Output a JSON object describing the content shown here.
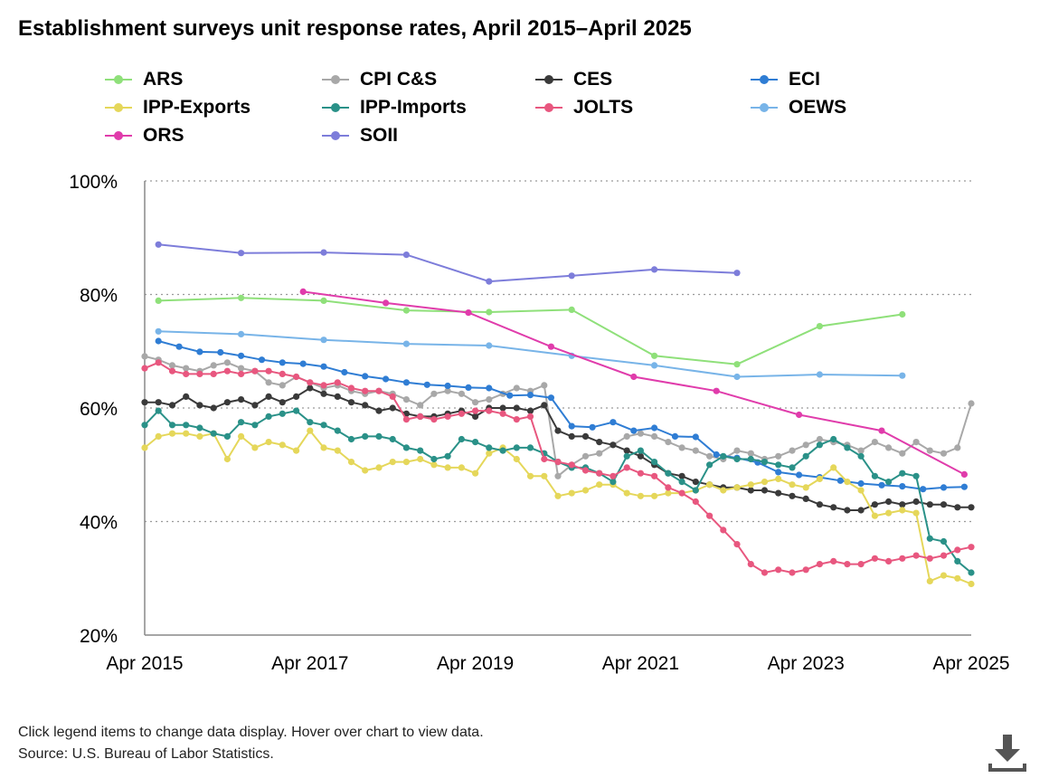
{
  "title": "Establishment surveys unit response rates, April 2015–April 2025",
  "footnote": {
    "line1": "Click legend items to change data display. Hover over chart to view data.",
    "line2": "Source: U.S. Bureau of Labor Statistics."
  },
  "download_icon": "download-icon",
  "chart_data": {
    "type": "line",
    "title": "Establishment surveys unit response rates, April 2015–April 2025",
    "xlabel": "",
    "ylabel": "",
    "x_range": [
      "2015-04",
      "2025-04"
    ],
    "xticks": [
      "Apr 2015",
      "Apr 2017",
      "Apr 2019",
      "Apr 2021",
      "Apr 2023",
      "Apr 2025"
    ],
    "yticks": [
      "20%",
      "40%",
      "60%",
      "80%",
      "100%"
    ],
    "ylim": [
      20,
      100
    ],
    "grid": "horizontal dotted",
    "legend_position": "top",
    "series": [
      {
        "name": "ARS",
        "color": "#8fe07a",
        "x": [
          "2015-06",
          "2016-06",
          "2017-06",
          "2018-06",
          "2019-06",
          "2020-06",
          "2021-06",
          "2022-06",
          "2023-06",
          "2024-06"
        ],
        "y": [
          78.9,
          79.4,
          78.9,
          77.2,
          76.9,
          77.3,
          69.2,
          67.7,
          74.4,
          76.5
        ]
      },
      {
        "name": "CPI C&S",
        "color": "#a8a8a8",
        "x": [
          "2015-04",
          "2015-06",
          "2015-08",
          "2015-10",
          "2015-12",
          "2016-02",
          "2016-04",
          "2016-06",
          "2016-08",
          "2016-10",
          "2016-12",
          "2017-02",
          "2017-04",
          "2017-06",
          "2017-08",
          "2017-10",
          "2017-12",
          "2018-02",
          "2018-04",
          "2018-06",
          "2018-08",
          "2018-10",
          "2018-12",
          "2019-02",
          "2019-04",
          "2019-06",
          "2019-08",
          "2019-10",
          "2019-12",
          "2020-02",
          "2020-04",
          "2020-06",
          "2020-08",
          "2020-10",
          "2020-12",
          "2021-02",
          "2021-04",
          "2021-06",
          "2021-08",
          "2021-10",
          "2021-12",
          "2022-02",
          "2022-04",
          "2022-06",
          "2022-08",
          "2022-10",
          "2022-12",
          "2023-02",
          "2023-04",
          "2023-06",
          "2023-08",
          "2023-10",
          "2023-12",
          "2024-02",
          "2024-04",
          "2024-06",
          "2024-08",
          "2024-10",
          "2024-12",
          "2025-02",
          "2025-04"
        ],
        "y": [
          69.1,
          68.5,
          67.5,
          67.0,
          66.5,
          67.5,
          68.0,
          67.0,
          66.5,
          64.5,
          64.0,
          65.5,
          64.5,
          63.5,
          64.0,
          63.0,
          62.5,
          63.0,
          62.5,
          61.5,
          60.5,
          62.5,
          63.0,
          62.5,
          61.0,
          61.5,
          62.5,
          63.5,
          63.0,
          64.0,
          48.0,
          50.0,
          51.5,
          52.0,
          53.5,
          55.0,
          55.5,
          55.0,
          54.0,
          53.0,
          52.5,
          51.5,
          51.0,
          52.5,
          52.0,
          51.0,
          51.5,
          52.5,
          53.5,
          54.5,
          54.0,
          53.5,
          52.5,
          54.0,
          53.0,
          52.0,
          54.0,
          52.5,
          52.0,
          53.0,
          60.8
        ]
      },
      {
        "name": "CES",
        "color": "#3a3a3a",
        "x": [
          "2015-04",
          "2015-06",
          "2015-08",
          "2015-10",
          "2015-12",
          "2016-02",
          "2016-04",
          "2016-06",
          "2016-08",
          "2016-10",
          "2016-12",
          "2017-02",
          "2017-04",
          "2017-06",
          "2017-08",
          "2017-10",
          "2017-12",
          "2018-02",
          "2018-04",
          "2018-06",
          "2018-08",
          "2018-10",
          "2018-12",
          "2019-02",
          "2019-04",
          "2019-06",
          "2019-08",
          "2019-10",
          "2019-12",
          "2020-02",
          "2020-04",
          "2020-06",
          "2020-08",
          "2020-10",
          "2020-12",
          "2021-02",
          "2021-04",
          "2021-06",
          "2021-08",
          "2021-10",
          "2021-12",
          "2022-02",
          "2022-04",
          "2022-06",
          "2022-08",
          "2022-10",
          "2022-12",
          "2023-02",
          "2023-04",
          "2023-06",
          "2023-08",
          "2023-10",
          "2023-12",
          "2024-02",
          "2024-04",
          "2024-06",
          "2024-08",
          "2024-10",
          "2024-12",
          "2025-02",
          "2025-04"
        ],
        "y": [
          61.0,
          61.0,
          60.5,
          62.0,
          60.5,
          60.0,
          61.0,
          61.5,
          60.5,
          62.0,
          61.0,
          62.0,
          63.5,
          62.5,
          62.0,
          61.0,
          60.5,
          59.5,
          60.0,
          59.0,
          58.5,
          58.5,
          59.0,
          59.5,
          58.5,
          60.0,
          60.0,
          60.0,
          59.5,
          60.5,
          56.0,
          55.0,
          55.0,
          54.0,
          53.5,
          52.5,
          51.5,
          50.0,
          48.5,
          48.0,
          47.0,
          46.5,
          46.0,
          46.0,
          45.5,
          45.5,
          45.0,
          44.5,
          44.0,
          43.0,
          42.5,
          42.0,
          42.0,
          43.0,
          43.5,
          43.0,
          43.5,
          43.0,
          43.0,
          42.5,
          42.5
        ]
      },
      {
        "name": "ECI",
        "color": "#2f7dd4",
        "x": [
          "2015-06",
          "2015-09",
          "2015-12",
          "2016-03",
          "2016-06",
          "2016-09",
          "2016-12",
          "2017-03",
          "2017-06",
          "2017-09",
          "2017-12",
          "2018-03",
          "2018-06",
          "2018-09",
          "2018-12",
          "2019-03",
          "2019-06",
          "2019-09",
          "2019-12",
          "2020-03",
          "2020-06",
          "2020-09",
          "2020-12",
          "2021-03",
          "2021-06",
          "2021-09",
          "2021-12",
          "2022-03",
          "2022-06",
          "2022-09",
          "2022-12",
          "2023-03",
          "2023-06",
          "2023-09",
          "2023-12",
          "2024-03",
          "2024-06",
          "2024-09",
          "2024-12",
          "2025-03"
        ],
        "y": [
          71.8,
          70.8,
          69.9,
          69.8,
          69.2,
          68.5,
          68.0,
          67.8,
          67.3,
          66.3,
          65.6,
          65.1,
          64.5,
          64.1,
          63.9,
          63.6,
          63.5,
          62.2,
          62.3,
          61.8,
          56.8,
          56.6,
          57.5,
          56.0,
          56.5,
          55.0,
          54.9,
          51.8,
          51.2,
          50.4,
          48.7,
          48.2,
          47.8,
          47.2,
          46.7,
          46.4,
          46.2,
          45.7,
          46.0,
          46.1
        ]
      },
      {
        "name": "IPP-Exports",
        "color": "#e5d75a",
        "x": [
          "2015-04",
          "2015-06",
          "2015-08",
          "2015-10",
          "2015-12",
          "2016-02",
          "2016-04",
          "2016-06",
          "2016-08",
          "2016-10",
          "2016-12",
          "2017-02",
          "2017-04",
          "2017-06",
          "2017-08",
          "2017-10",
          "2017-12",
          "2018-02",
          "2018-04",
          "2018-06",
          "2018-08",
          "2018-10",
          "2018-12",
          "2019-02",
          "2019-04",
          "2019-06",
          "2019-08",
          "2019-10",
          "2019-12",
          "2020-02",
          "2020-04",
          "2020-06",
          "2020-08",
          "2020-10",
          "2020-12",
          "2021-02",
          "2021-04",
          "2021-06",
          "2021-08",
          "2021-10",
          "2021-12",
          "2022-02",
          "2022-04",
          "2022-06",
          "2022-08",
          "2022-10",
          "2022-12",
          "2023-02",
          "2023-04",
          "2023-06",
          "2023-08",
          "2023-10",
          "2023-12",
          "2024-02",
          "2024-04",
          "2024-06",
          "2024-08",
          "2024-10",
          "2024-12",
          "2025-02",
          "2025-04"
        ],
        "y": [
          53.0,
          55.0,
          55.5,
          55.5,
          55.0,
          55.5,
          51.0,
          55.0,
          53.0,
          54.0,
          53.5,
          52.5,
          56.0,
          53.0,
          52.5,
          50.5,
          49.0,
          49.5,
          50.5,
          50.5,
          51.0,
          50.0,
          49.5,
          49.5,
          48.5,
          52.0,
          53.0,
          51.0,
          48.0,
          48.0,
          44.5,
          45.0,
          45.5,
          46.5,
          46.5,
          45.0,
          44.5,
          44.5,
          45.0,
          45.0,
          45.5,
          46.5,
          45.5,
          46.0,
          46.5,
          47.0,
          47.5,
          46.5,
          46.0,
          47.5,
          49.5,
          47.0,
          45.5,
          41.0,
          41.5,
          42.0,
          41.5,
          29.5,
          30.5,
          30.0,
          29.0
        ]
      },
      {
        "name": "IPP-Imports",
        "color": "#2a9188",
        "x": [
          "2015-04",
          "2015-06",
          "2015-08",
          "2015-10",
          "2015-12",
          "2016-02",
          "2016-04",
          "2016-06",
          "2016-08",
          "2016-10",
          "2016-12",
          "2017-02",
          "2017-04",
          "2017-06",
          "2017-08",
          "2017-10",
          "2017-12",
          "2018-02",
          "2018-04",
          "2018-06",
          "2018-08",
          "2018-10",
          "2018-12",
          "2019-02",
          "2019-04",
          "2019-06",
          "2019-08",
          "2019-10",
          "2019-12",
          "2020-02",
          "2020-04",
          "2020-06",
          "2020-08",
          "2020-10",
          "2020-12",
          "2021-02",
          "2021-04",
          "2021-06",
          "2021-08",
          "2021-10",
          "2021-12",
          "2022-02",
          "2022-04",
          "2022-06",
          "2022-08",
          "2022-10",
          "2022-12",
          "2023-02",
          "2023-04",
          "2023-06",
          "2023-08",
          "2023-10",
          "2023-12",
          "2024-02",
          "2024-04",
          "2024-06",
          "2024-08",
          "2024-10",
          "2024-12",
          "2025-02",
          "2025-04"
        ],
        "y": [
          57.0,
          59.5,
          57.0,
          57.0,
          56.5,
          55.5,
          55.0,
          57.5,
          57.0,
          58.5,
          59.0,
          59.5,
          57.5,
          57.0,
          56.0,
          54.5,
          55.0,
          55.0,
          54.5,
          53.0,
          52.5,
          51.0,
          51.5,
          54.5,
          54.0,
          53.0,
          52.5,
          53.0,
          53.0,
          52.0,
          50.5,
          49.5,
          49.5,
          48.5,
          47.0,
          51.5,
          52.5,
          50.5,
          48.5,
          47.0,
          45.5,
          50.0,
          51.5,
          51.0,
          51.0,
          50.5,
          50.0,
          49.5,
          51.5,
          53.5,
          54.5,
          53.0,
          51.5,
          48.0,
          47.0,
          48.5,
          48.0,
          37.0,
          36.5,
          33.0,
          31.0
        ]
      },
      {
        "name": "JOLTS",
        "color": "#e8577f",
        "x": [
          "2015-04",
          "2015-06",
          "2015-08",
          "2015-10",
          "2015-12",
          "2016-02",
          "2016-04",
          "2016-06",
          "2016-08",
          "2016-10",
          "2016-12",
          "2017-02",
          "2017-04",
          "2017-06",
          "2017-08",
          "2017-10",
          "2017-12",
          "2018-02",
          "2018-04",
          "2018-06",
          "2018-08",
          "2018-10",
          "2018-12",
          "2019-02",
          "2019-04",
          "2019-06",
          "2019-08",
          "2019-10",
          "2019-12",
          "2020-02",
          "2020-04",
          "2020-06",
          "2020-08",
          "2020-10",
          "2020-12",
          "2021-02",
          "2021-04",
          "2021-06",
          "2021-08",
          "2021-10",
          "2021-12",
          "2022-02",
          "2022-04",
          "2022-06",
          "2022-08",
          "2022-10",
          "2022-12",
          "2023-02",
          "2023-04",
          "2023-06",
          "2023-08",
          "2023-10",
          "2023-12",
          "2024-02",
          "2024-04",
          "2024-06",
          "2024-08",
          "2024-10",
          "2024-12",
          "2025-02",
          "2025-04"
        ],
        "y": [
          67.0,
          68.0,
          66.5,
          66.0,
          66.0,
          66.0,
          66.5,
          66.0,
          66.5,
          66.5,
          66.0,
          65.5,
          64.5,
          64.0,
          64.5,
          63.5,
          63.0,
          63.0,
          62.0,
          58.0,
          58.5,
          58.0,
          58.5,
          59.0,
          59.5,
          59.5,
          59.0,
          58.0,
          58.5,
          51.0,
          50.5,
          50.0,
          49.0,
          48.5,
          48.0,
          49.5,
          48.5,
          48.0,
          46.0,
          45.0,
          43.5,
          41.0,
          38.5,
          36.0,
          32.5,
          31.0,
          31.5,
          31.0,
          31.5,
          32.5,
          33.0,
          32.5,
          32.5,
          33.5,
          33.0,
          33.5,
          34.0,
          33.5,
          34.0,
          35.0,
          35.5
        ]
      },
      {
        "name": "OEWS",
        "color": "#78b4e8",
        "x": [
          "2015-06",
          "2016-06",
          "2017-06",
          "2018-06",
          "2019-06",
          "2020-06",
          "2021-06",
          "2022-06",
          "2023-06",
          "2024-06"
        ],
        "y": [
          73.5,
          73.0,
          72.0,
          71.3,
          71.0,
          69.2,
          67.5,
          65.5,
          65.9,
          65.7
        ]
      },
      {
        "name": "ORS",
        "color": "#e03cab",
        "x": [
          "2017-03",
          "2018-03",
          "2019-03",
          "2020-03",
          "2021-03",
          "2022-03",
          "2023-03",
          "2024-03",
          "2025-03"
        ],
        "y": [
          80.5,
          78.5,
          76.8,
          70.8,
          65.5,
          63.0,
          58.8,
          56.0,
          48.3
        ]
      },
      {
        "name": "SOII",
        "color": "#7d7dda",
        "x": [
          "2015-06",
          "2016-06",
          "2017-06",
          "2018-06",
          "2019-06",
          "2020-06",
          "2021-06",
          "2022-06"
        ],
        "y": [
          88.8,
          87.3,
          87.4,
          87.0,
          82.3,
          83.3,
          84.4,
          83.8
        ]
      }
    ]
  }
}
